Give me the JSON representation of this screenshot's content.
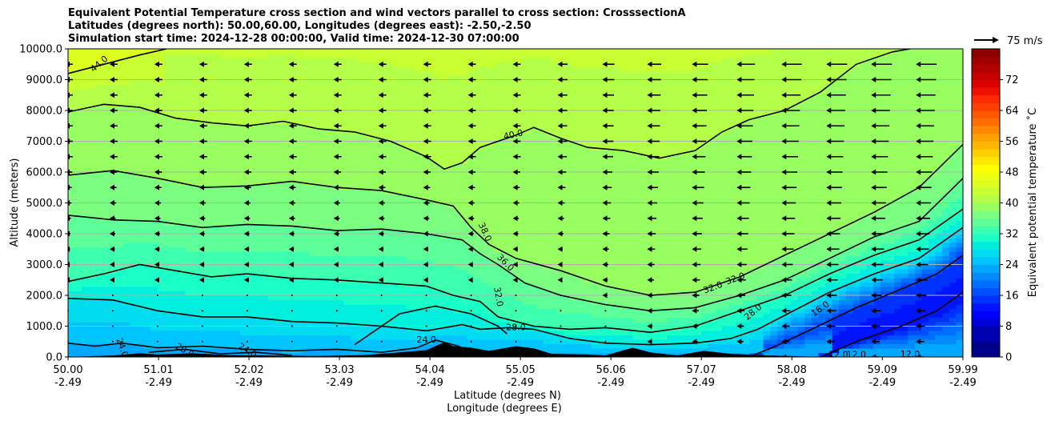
{
  "title_lines": [
    "Equivalent Potential Temperature cross section and wind vectors parallel to cross section: CrosssectionA",
    "Latitudes (degrees north): 50.00,60.00, Longitudes (degrees east): -2.50,-2.50",
    "Simulation start time: 2024-12-28 00:00:00, Valid time: 2024-12-30 07:00:00"
  ],
  "chart_data": {
    "type": "cross-section contour",
    "title": "Equivalent Potential Temperature cross section and wind vectors parallel to cross section: CrosssectionA",
    "xlabel_line1": "Latitude (degrees N)",
    "xlabel_line2": "Longitude (degrees E)",
    "ylabel": "Altitude (meters)",
    "xlim": [
      50.0,
      59.99
    ],
    "ylim": [
      0,
      10000
    ],
    "x_ticks": [
      {
        "lat": "50.00",
        "lon": "-2.49",
        "value": 50.0
      },
      {
        "lat": "51.01",
        "lon": "-2.49",
        "value": 51.01
      },
      {
        "lat": "52.02",
        "lon": "-2.49",
        "value": 52.02
      },
      {
        "lat": "53.03",
        "lon": "-2.49",
        "value": 53.03
      },
      {
        "lat": "54.04",
        "lon": "-2.49",
        "value": 54.04
      },
      {
        "lat": "55.05",
        "lon": "-2.49",
        "value": 55.05
      },
      {
        "lat": "56.06",
        "lon": "-2.49",
        "value": 56.06
      },
      {
        "lat": "57.07",
        "lon": "-2.49",
        "value": 57.07
      },
      {
        "lat": "58.08",
        "lon": "-2.49",
        "value": 58.08
      },
      {
        "lat": "59.09",
        "lon": "-2.49",
        "value": 59.09
      },
      {
        "lat": "59.99",
        "lon": "-2.49",
        "value": 59.99
      }
    ],
    "y_ticks": [
      "0.0",
      "1000.0",
      "2000.0",
      "3000.0",
      "4000.0",
      "5000.0",
      "6000.0",
      "7000.0",
      "8000.0",
      "9000.0",
      "10000.0"
    ],
    "y_tick_values": [
      0,
      1000,
      2000,
      3000,
      4000,
      5000,
      6000,
      7000,
      8000,
      9000,
      10000
    ],
    "grid": "horizontal",
    "colorbar": {
      "label": "Equivalent potential temperature ˚C",
      "range": [
        0,
        80
      ],
      "ticks": [
        "0",
        "8",
        "16",
        "24",
        "32",
        "40",
        "48",
        "56",
        "64",
        "72"
      ],
      "tick_values": [
        0,
        8,
        16,
        24,
        32,
        40,
        48,
        56,
        64,
        72
      ],
      "levels": [
        0,
        4,
        8,
        10,
        12,
        14,
        16,
        18,
        20,
        22,
        24,
        26,
        28,
        30,
        32,
        34,
        36,
        38,
        40,
        42,
        44,
        46,
        48,
        50,
        52,
        54,
        56,
        58,
        60,
        62,
        64,
        66,
        68,
        70,
        72,
        74,
        76,
        78,
        80
      ],
      "colors": [
        "#00008b",
        "#0000b0",
        "#0000d8",
        "#0000ff",
        "#0014ff",
        "#0032ff",
        "#0050ff",
        "#006eff",
        "#008cff",
        "#00a8ff",
        "#00c4ff",
        "#00dcf0",
        "#00eedd",
        "#1affc8",
        "#3cffb0",
        "#5cff98",
        "#7cff80",
        "#98ff60",
        "#b4ff48",
        "#c8ff30",
        "#dcff20",
        "#eeff10",
        "#ffff00",
        "#ffe800",
        "#ffd000",
        "#ffb800",
        "#ffa000",
        "#ff8800",
        "#ff7000",
        "#ff5800",
        "#ff4000",
        "#ff2800",
        "#f01000",
        "#dc0000",
        "#c80000",
        "#b40000",
        "#a00000",
        "#8c0000"
      ]
    },
    "contours": [
      {
        "level": 44,
        "label": "44.0",
        "points": [
          [
            50.0,
            9200
          ],
          [
            50.4,
            9500
          ],
          [
            50.8,
            9800
          ],
          [
            51.1,
            10000
          ]
        ]
      },
      {
        "level": 40,
        "label": "40.0",
        "points": [
          [
            50.0,
            7950
          ],
          [
            50.4,
            8200
          ],
          [
            50.8,
            8100
          ],
          [
            51.2,
            7750
          ],
          [
            51.6,
            7600
          ],
          [
            52.0,
            7500
          ],
          [
            52.4,
            7650
          ],
          [
            52.8,
            7400
          ],
          [
            53.2,
            7300
          ],
          [
            53.6,
            7000
          ],
          [
            54.0,
            6500
          ],
          [
            54.2,
            6100
          ],
          [
            54.4,
            6300
          ],
          [
            54.6,
            6800
          ],
          [
            54.8,
            7000
          ],
          [
            55.0,
            7200
          ],
          [
            55.2,
            7450
          ],
          [
            55.5,
            7100
          ],
          [
            55.8,
            6800
          ],
          [
            56.2,
            6700
          ],
          [
            56.6,
            6450
          ],
          [
            57.0,
            6700
          ],
          [
            57.3,
            7300
          ],
          [
            57.6,
            7700
          ],
          [
            58.0,
            8000
          ],
          [
            58.4,
            8600
          ],
          [
            58.8,
            9500
          ],
          [
            59.2,
            9900
          ],
          [
            59.4,
            10000
          ]
        ]
      },
      {
        "level": 38,
        "label": "38.0",
        "points": [
          [
            50.0,
            5900
          ],
          [
            50.5,
            6050
          ],
          [
            51.0,
            5800
          ],
          [
            51.5,
            5500
          ],
          [
            52.0,
            5550
          ],
          [
            52.5,
            5700
          ],
          [
            53.0,
            5500
          ],
          [
            53.5,
            5400
          ],
          [
            54.0,
            5100
          ],
          [
            54.3,
            4900
          ],
          [
            54.5,
            4200
          ],
          [
            54.7,
            3650
          ],
          [
            55.0,
            3200
          ],
          [
            55.5,
            2800
          ],
          [
            56.0,
            2300
          ],
          [
            56.5,
            2000
          ],
          [
            57.0,
            2100
          ],
          [
            57.5,
            2600
          ],
          [
            58.0,
            3300
          ],
          [
            58.5,
            4000
          ],
          [
            59.0,
            4700
          ],
          [
            59.5,
            5500
          ],
          [
            59.99,
            6900
          ]
        ]
      },
      {
        "level": 36,
        "label": "36.0",
        "points": [
          [
            50.0,
            4600
          ],
          [
            50.5,
            4450
          ],
          [
            51.0,
            4400
          ],
          [
            51.5,
            4200
          ],
          [
            52.0,
            4300
          ],
          [
            52.5,
            4250
          ],
          [
            53.0,
            4100
          ],
          [
            53.5,
            4150
          ],
          [
            54.0,
            4000
          ],
          [
            54.4,
            3800
          ],
          [
            54.6,
            3350
          ],
          [
            54.8,
            3000
          ],
          [
            55.1,
            2400
          ],
          [
            55.5,
            2000
          ],
          [
            56.0,
            1700
          ],
          [
            56.5,
            1500
          ],
          [
            57.0,
            1600
          ],
          [
            57.5,
            2000
          ],
          [
            58.0,
            2500
          ],
          [
            58.5,
            3200
          ],
          [
            59.0,
            3900
          ],
          [
            59.5,
            4400
          ],
          [
            59.99,
            5800
          ]
        ]
      },
      {
        "level": 32,
        "label": "32.0",
        "points": [
          [
            50.0,
            2450
          ],
          [
            50.4,
            2700
          ],
          [
            50.8,
            3000
          ],
          [
            51.2,
            2800
          ],
          [
            51.6,
            2600
          ],
          [
            52.0,
            2700
          ],
          [
            52.5,
            2550
          ],
          [
            53.0,
            2500
          ],
          [
            53.5,
            2400
          ],
          [
            54.0,
            2300
          ],
          [
            54.3,
            2000
          ],
          [
            54.6,
            1800
          ],
          [
            54.8,
            1300
          ],
          [
            55.2,
            1000
          ],
          [
            55.6,
            900
          ],
          [
            56.0,
            950
          ],
          [
            56.5,
            800
          ],
          [
            57.0,
            1000
          ],
          [
            57.5,
            1500
          ],
          [
            58.0,
            2000
          ],
          [
            58.5,
            2700
          ],
          [
            59.0,
            3300
          ],
          [
            59.5,
            3800
          ],
          [
            59.99,
            4800
          ]
        ]
      },
      {
        "level": 28,
        "label": "28.0",
        "points": [
          [
            50.0,
            1900
          ],
          [
            50.5,
            1850
          ],
          [
            51.0,
            1500
          ],
          [
            51.5,
            1300
          ],
          [
            52.0,
            1300
          ],
          [
            52.5,
            1150
          ],
          [
            53.0,
            1100
          ],
          [
            53.5,
            1000
          ],
          [
            54.0,
            850
          ],
          [
            54.4,
            1050
          ],
          [
            54.6,
            900
          ],
          [
            54.9,
            950
          ],
          [
            55.2,
            900
          ],
          [
            55.6,
            600
          ],
          [
            56.0,
            450
          ],
          [
            56.5,
            400
          ],
          [
            57.0,
            450
          ],
          [
            57.4,
            600
          ],
          [
            57.7,
            900
          ],
          [
            58.0,
            1350
          ],
          [
            58.5,
            2100
          ],
          [
            59.0,
            2700
          ],
          [
            59.5,
            3200
          ],
          [
            59.99,
            4200
          ]
        ]
      },
      {
        "level": 24,
        "label": "24.0",
        "points": [
          [
            50.0,
            450
          ],
          [
            50.3,
            350
          ],
          [
            50.6,
            450
          ],
          [
            51.0,
            300
          ],
          [
            51.5,
            350
          ],
          [
            52.0,
            250
          ],
          [
            52.5,
            200
          ],
          [
            53.0,
            250
          ],
          [
            53.5,
            150
          ],
          [
            53.9,
            300
          ],
          [
            54.1,
            550
          ],
          [
            54.3,
            400
          ],
          [
            54.5,
            200
          ]
        ]
      },
      {
        "level": 24,
        "label": "",
        "points": [
          [
            53.2,
            400
          ],
          [
            53.4,
            800
          ],
          [
            53.7,
            1400
          ],
          [
            54.1,
            1650
          ],
          [
            54.5,
            1400
          ],
          [
            54.8,
            1000
          ],
          [
            54.9,
            750
          ]
        ]
      },
      {
        "level": 20,
        "label": "20.0",
        "points": [
          [
            50.9,
            150
          ],
          [
            51.3,
            250
          ],
          [
            51.7,
            100
          ],
          [
            52.1,
            150
          ],
          [
            52.5,
            50
          ]
        ]
      },
      {
        "level": 16,
        "label": "16.0",
        "points": [
          [
            57.6,
            0
          ],
          [
            57.9,
            350
          ],
          [
            58.3,
            900
          ],
          [
            58.8,
            1600
          ],
          [
            59.3,
            2200
          ],
          [
            59.7,
            2700
          ],
          [
            59.99,
            3300
          ]
        ]
      },
      {
        "level": 12,
        "label": "12.0",
        "points": [
          [
            58.4,
            0
          ],
          [
            58.8,
            500
          ],
          [
            59.3,
            1000
          ],
          [
            59.7,
            1500
          ],
          [
            59.99,
            2100
          ]
        ]
      }
    ],
    "contour_labels": [
      {
        "text": "44.0",
        "x": 50.35,
        "y": 9500,
        "rotation": -40
      },
      {
        "text": "40.0",
        "x": 54.97,
        "y": 7200,
        "rotation": -12
      },
      {
        "text": "38.0",
        "x": 54.65,
        "y": 4050,
        "rotation": 65
      },
      {
        "text": "36.0",
        "x": 54.88,
        "y": 3050,
        "rotation": 45
      },
      {
        "text": "32.0",
        "x": 54.8,
        "y": 1950,
        "rotation": 80
      },
      {
        "text": "32.0",
        "x": 57.2,
        "y": 2240,
        "rotation": -20
      },
      {
        "text": "32.0",
        "x": 57.45,
        "y": 2530,
        "rotation": -20
      },
      {
        "text": "28.0",
        "x": 55.0,
        "y": 950,
        "rotation": 0
      },
      {
        "text": "28.0",
        "x": 57.65,
        "y": 1450,
        "rotation": -40
      },
      {
        "text": "24.0",
        "x": 54.0,
        "y": 550,
        "rotation": 0
      },
      {
        "text": "24.0",
        "x": 50.6,
        "y": 300,
        "rotation": 70
      },
      {
        "text": "24.0",
        "x": 52.0,
        "y": 200,
        "rotation": 30
      },
      {
        "text": "20.0",
        "x": 51.3,
        "y": 200,
        "rotation": 30
      },
      {
        "text": "16.0",
        "x": 58.4,
        "y": 1550,
        "rotation": -35
      },
      {
        "text": "12.0",
        "x": 58.6,
        "y": 60,
        "rotation": 0
      },
      {
        "text": "12.0",
        "x": 58.8,
        "y": 60,
        "rotation": 0
      },
      {
        "text": "12.0",
        "x": 59.4,
        "y": 80,
        "rotation": 0
      }
    ],
    "terrain": [
      [
        50.0,
        0
      ],
      [
        50.5,
        50
      ],
      [
        50.8,
        120
      ],
      [
        51.0,
        80
      ],
      [
        51.4,
        120
      ],
      [
        51.8,
        60
      ],
      [
        52.2,
        50
      ],
      [
        52.8,
        30
      ],
      [
        53.3,
        60
      ],
      [
        53.7,
        150
      ],
      [
        54.0,
        220
      ],
      [
        54.2,
        480
      ],
      [
        54.3,
        350
      ],
      [
        54.5,
        300
      ],
      [
        54.7,
        200
      ],
      [
        55.0,
        350
      ],
      [
        55.2,
        280
      ],
      [
        55.4,
        100
      ],
      [
        55.8,
        80
      ],
      [
        56.0,
        50
      ],
      [
        56.3,
        300
      ],
      [
        56.5,
        150
      ],
      [
        56.8,
        50
      ],
      [
        57.1,
        200
      ],
      [
        57.4,
        100
      ],
      [
        57.8,
        50
      ],
      [
        58.2,
        20
      ],
      [
        58.6,
        0
      ],
      [
        59.99,
        0
      ]
    ],
    "wind_key": {
      "label": "75 m/s",
      "speed": 75
    },
    "wind_speed_profile": [
      {
        "alt": 9500,
        "west_lat": 55.0,
        "speed_west": 12,
        "speed_east": 45
      },
      {
        "alt": 6500,
        "west_lat": 55.0,
        "speed_west": 12,
        "speed_east": 35
      },
      {
        "alt": 3500,
        "west_lat": 55.5,
        "speed_west": 5,
        "speed_east": 25
      },
      {
        "alt": 1000,
        "west_lat": 56.0,
        "speed_west": 3,
        "speed_east": 15
      }
    ]
  }
}
